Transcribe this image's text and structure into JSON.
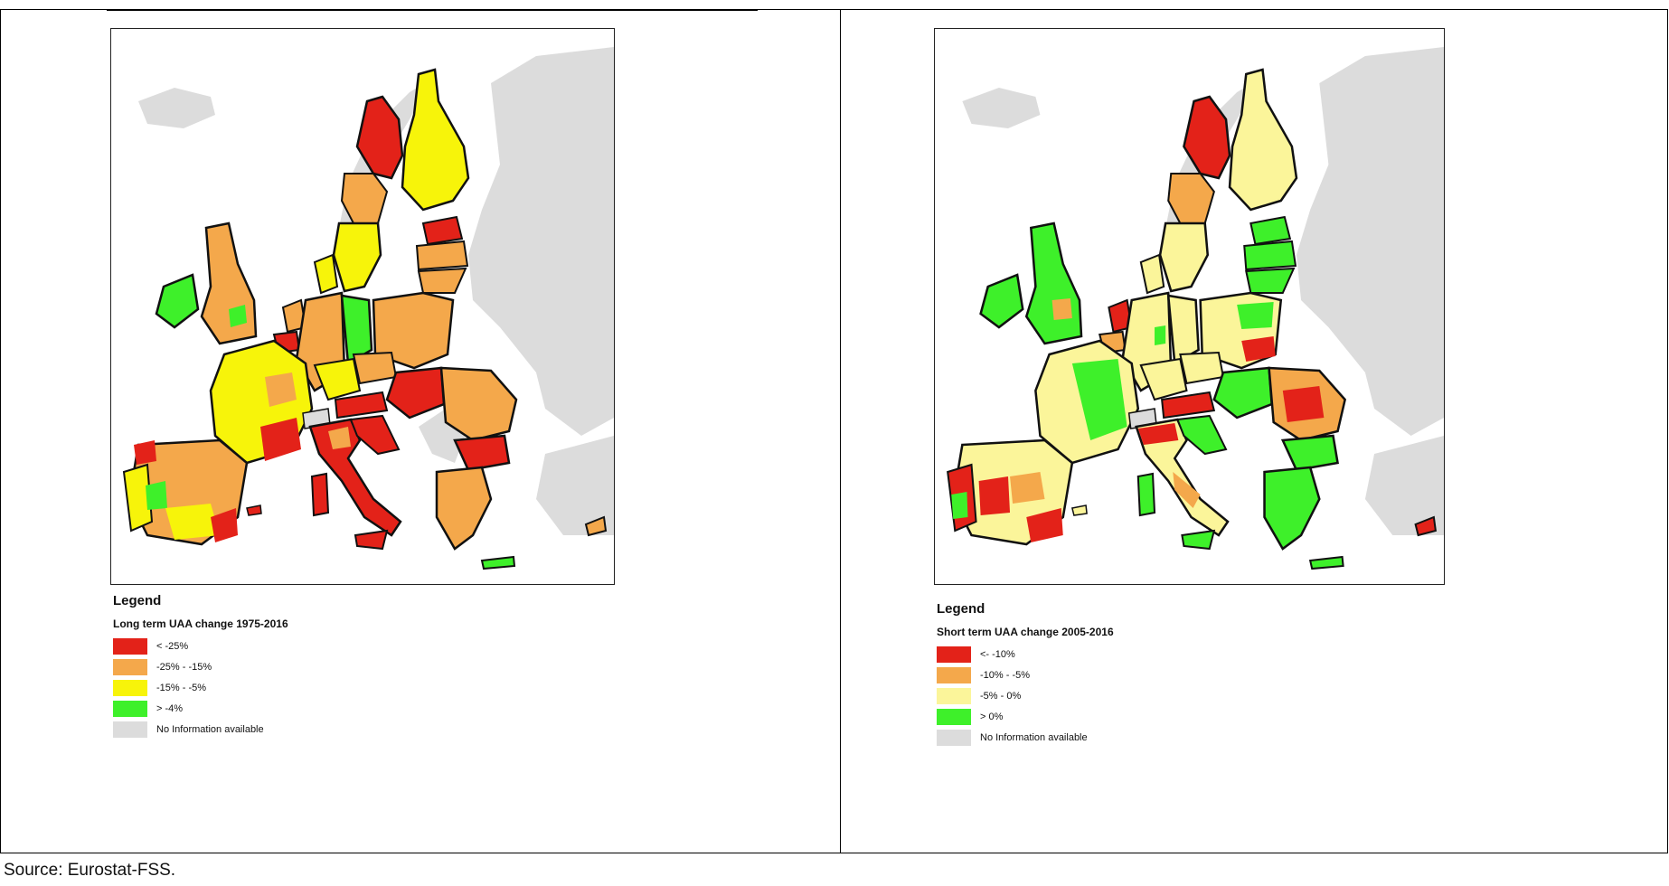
{
  "colors": {
    "red": "#e32219",
    "orange": "#f4a84b",
    "yellow_long": "#f7f40a",
    "yellow_short": "#fbf59a",
    "green": "#3ef02a",
    "grey": "#dcdcdc",
    "border": "#111111"
  },
  "maps": [
    {
      "legend_title": "Legend",
      "legend_subtitle": "Long term UAA change 1975-2016",
      "items": [
        {
          "label": "< -25%",
          "color": "#e32219"
        },
        {
          "label": "-25% - -15%",
          "color": "#f4a84b"
        },
        {
          "label": "-15% - -5%",
          "color": "#f7f40a"
        },
        {
          "label": "> -4%",
          "color": "#3ef02a"
        },
        {
          "label": "No Information available",
          "color": "#dcdcdc"
        }
      ]
    },
    {
      "legend_title": "Legend",
      "legend_subtitle": "Short term UAA change 2005-2016",
      "items": [
        {
          "label": "<- -10%",
          "color": "#e32219"
        },
        {
          "label": "-10% - -5%",
          "color": "#f4a84b"
        },
        {
          "label": "-5% - 0%",
          "color": "#fbf59a"
        },
        {
          "label": "> 0%",
          "color": "#3ef02a"
        },
        {
          "label": "No Information available",
          "color": "#dcdcdc"
        }
      ]
    }
  ],
  "source": "Source: Eurostat-FSS."
}
